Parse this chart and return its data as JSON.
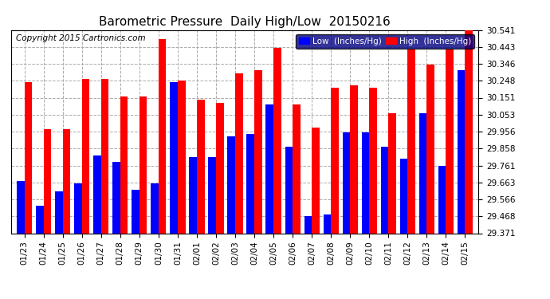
{
  "title": "Barometric Pressure  Daily High/Low  20150216",
  "copyright": "Copyright 2015 Cartronics.com",
  "legend_low": "Low  (Inches/Hg)",
  "legend_high": "High  (Inches/Hg)",
  "categories": [
    "01/23",
    "01/24",
    "01/25",
    "01/26",
    "01/27",
    "01/28",
    "01/29",
    "01/30",
    "01/31",
    "02/01",
    "02/02",
    "02/03",
    "02/04",
    "02/05",
    "02/06",
    "02/07",
    "02/08",
    "02/09",
    "02/10",
    "02/11",
    "02/12",
    "02/13",
    "02/14",
    "02/15"
  ],
  "low_values": [
    29.67,
    29.53,
    29.61,
    29.66,
    29.82,
    29.78,
    29.62,
    29.66,
    30.24,
    29.81,
    29.81,
    29.93,
    29.94,
    30.11,
    29.87,
    29.47,
    29.48,
    29.95,
    29.95,
    29.87,
    29.8,
    30.06,
    29.76,
    30.31
  ],
  "high_values": [
    30.24,
    29.97,
    29.97,
    30.26,
    30.26,
    30.16,
    30.16,
    30.49,
    30.25,
    30.14,
    30.12,
    30.29,
    30.31,
    30.44,
    30.11,
    29.98,
    30.21,
    30.22,
    30.21,
    30.06,
    30.43,
    30.34,
    30.43,
    30.54
  ],
  "ylim_min": 29.371,
  "ylim_max": 30.541,
  "yticks": [
    29.371,
    29.468,
    29.566,
    29.663,
    29.761,
    29.858,
    29.956,
    30.053,
    30.151,
    30.248,
    30.346,
    30.443,
    30.541
  ],
  "color_low": "#0000ff",
  "color_high": "#ff0000",
  "color_bg": "#ffffff",
  "color_legend_bg": "#000080",
  "grid_color": "#aaaaaa",
  "title_fontsize": 11,
  "copyright_fontsize": 7.5
}
